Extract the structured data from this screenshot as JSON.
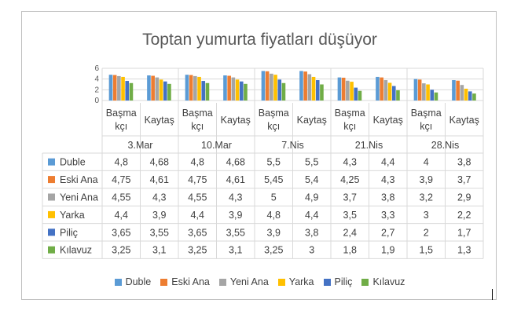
{
  "chart_data": {
    "type": "bar",
    "title": "Toptan yumurta fiyatları düşüyor",
    "groups": [
      "3.Mar",
      "10.Mar",
      "7.Nis",
      "21.Nis",
      "28.Nis"
    ],
    "subcategories": [
      "Başma kçı",
      "Kaytaş"
    ],
    "subcategory_lines": [
      [
        "Başma",
        "kçı"
      ],
      [
        "Kaytaş"
      ]
    ],
    "yticks": [
      "0",
      "2",
      "4",
      "6"
    ],
    "ylim": [
      0,
      6
    ],
    "legend_position": "bottom",
    "series": [
      {
        "name": "Duble",
        "color": "#5b9bd5",
        "values": [
          4.8,
          4.68,
          4.8,
          4.68,
          5.5,
          5.5,
          4.3,
          4.4,
          4,
          3.8
        ]
      },
      {
        "name": "Eski Ana",
        "color": "#ed7d31",
        "values": [
          4.75,
          4.61,
          4.75,
          4.61,
          5.45,
          5.4,
          4.25,
          4.3,
          3.9,
          3.7
        ]
      },
      {
        "name": "Yeni Ana",
        "color": "#a5a5a5",
        "values": [
          4.55,
          4.3,
          4.55,
          4.3,
          5,
          4.9,
          3.7,
          3.8,
          3.2,
          2.9
        ]
      },
      {
        "name": "Yarka",
        "color": "#ffc000",
        "values": [
          4.4,
          3.9,
          4.4,
          3.9,
          4.8,
          4.4,
          3.5,
          3.3,
          3,
          2.2
        ]
      },
      {
        "name": "Piliç",
        "color": "#4472c4",
        "values": [
          3.65,
          3.55,
          3.65,
          3.55,
          3.9,
          3.8,
          2.4,
          2.7,
          2,
          1.7
        ]
      },
      {
        "name": "Kılavuz",
        "color": "#70ad47",
        "values": [
          3.25,
          3.1,
          3.25,
          3.1,
          3.25,
          3,
          1.8,
          1.9,
          1.5,
          1.3
        ]
      }
    ],
    "table_values": [
      [
        "4,8",
        "4,68",
        "4,8",
        "4,68",
        "5,5",
        "5,5",
        "4,3",
        "4,4",
        "4",
        "3,8"
      ],
      [
        "4,75",
        "4,61",
        "4,75",
        "4,61",
        "5,45",
        "5,4",
        "4,25",
        "4,3",
        "3,9",
        "3,7"
      ],
      [
        "4,55",
        "4,3",
        "4,55",
        "4,3",
        "5",
        "4,9",
        "3,7",
        "3,8",
        "3,2",
        "2,9"
      ],
      [
        "4,4",
        "3,9",
        "4,4",
        "3,9",
        "4,8",
        "4,4",
        "3,5",
        "3,3",
        "3",
        "2,2"
      ],
      [
        "3,65",
        "3,55",
        "3,65",
        "3,55",
        "3,9",
        "3,8",
        "2,4",
        "2,7",
        "2",
        "1,7"
      ],
      [
        "3,25",
        "3,1",
        "3,25",
        "3,1",
        "3,25",
        "3",
        "1,8",
        "1,9",
        "1,5",
        "1,3"
      ]
    ]
  }
}
